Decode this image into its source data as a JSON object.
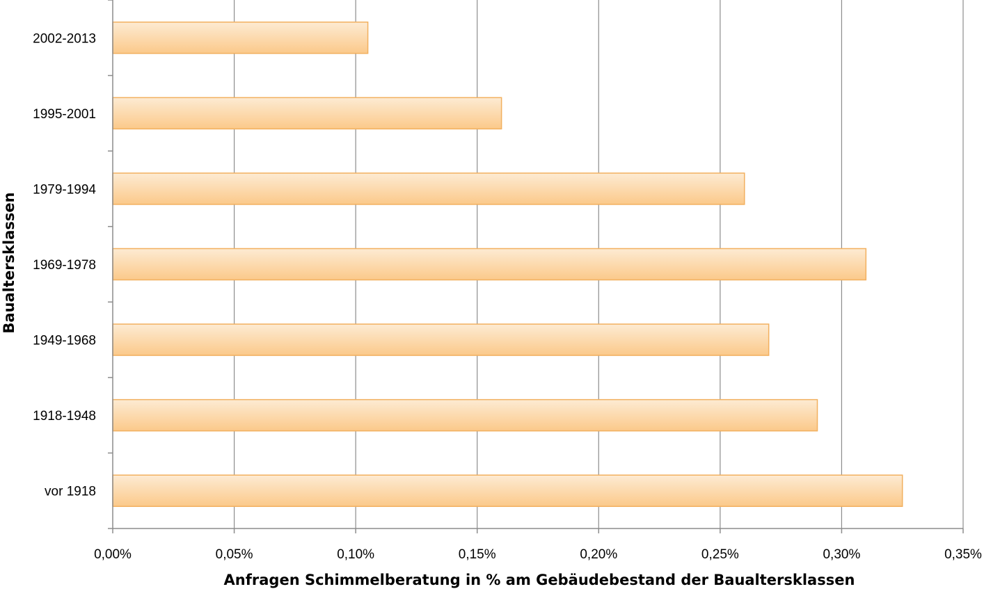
{
  "chart_data": {
    "type": "bar",
    "orientation": "horizontal",
    "categories": [
      "2002-2013",
      "1995-2001",
      "1979-1994",
      "1969-1978",
      "1949-1968",
      "1918-1948",
      "vor 1918"
    ],
    "values": [
      0.00105,
      0.0016,
      0.0026,
      0.0031,
      0.0027,
      0.0029,
      0.00325
    ],
    "xlabel": "Anfragen Schimmelberatung in % am Gebäudebestand der Baualtersklassen",
    "ylabel": "Baualtersklassen",
    "xlim": [
      0,
      0.0035
    ],
    "x_ticks": [
      0,
      0.0005,
      0.001,
      0.0015,
      0.002,
      0.0025,
      0.003,
      0.0035
    ],
    "x_tick_labels": [
      "0,00%",
      "0,05%",
      "0,10%",
      "0,15%",
      "0,20%",
      "0,25%",
      "0,30%",
      "0,35%"
    ],
    "grid": "vertical",
    "legend": "none",
    "colors": {
      "bar_fill_top": "#FDEBD3",
      "bar_fill_bottom": "#FBC98A",
      "bar_stroke": "#F2B05F",
      "grid": "#8C8C8C",
      "axis": "#8C8C8C"
    }
  }
}
